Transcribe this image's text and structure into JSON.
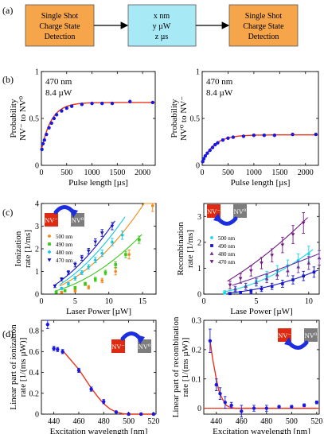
{
  "colors": {
    "orange": "#f6a54a",
    "cyan": "#a8e9f6",
    "red": "#e8341c",
    "blue": "#1818e0",
    "grey": "#8a8a8a",
    "nvred": "#dd2a10",
    "nvgrey": "#7d7d7d"
  },
  "panel_labels": {
    "a": "(a)",
    "b": "(b)",
    "c": "(c)",
    "d": "(d)"
  },
  "flow": {
    "box1": [
      "Single Shot",
      "Charge State",
      "Detection"
    ],
    "box2": [
      "x nm",
      "y µW",
      "z µs"
    ],
    "box3": [
      "Single Shot",
      "Charge State",
      "Detection"
    ]
  },
  "nv": {
    "minus": "NV⁻",
    "zero": "NV⁰"
  },
  "legend": [
    "500 nm",
    "490 nm",
    "480 nm",
    "470 nm"
  ],
  "chart_data": [
    {
      "id": "b-left",
      "type": "scatter",
      "annotation": [
        "470 nm",
        "8.4 µW"
      ],
      "xlabel": "Pulse length [µs]",
      "ylabel": [
        "Probability",
        "NV⁻ to NV⁰"
      ],
      "xlim": [
        0,
        2250
      ],
      "ylim": [
        0,
        1
      ],
      "xticks": [
        "0",
        "500",
        "1000",
        "1500",
        "2000"
      ],
      "yticks": [
        "0",
        "0.5",
        "1"
      ],
      "x": [
        10,
        30,
        60,
        100,
        150,
        200,
        250,
        300,
        400,
        500,
        600,
        800,
        1000,
        1200,
        1400,
        1750,
        2200
      ],
      "y": [
        0.17,
        0.23,
        0.27,
        0.33,
        0.4,
        0.45,
        0.5,
        0.54,
        0.58,
        0.61,
        0.63,
        0.65,
        0.66,
        0.66,
        0.66,
        0.68,
        0.67
      ],
      "fit": {
        "a": 0.67,
        "b": 0.16,
        "tau": 200
      }
    },
    {
      "id": "b-right",
      "type": "scatter",
      "annotation": [
        "470 nm",
        "8.4 µW"
      ],
      "xlabel": "Pulse length [µs]",
      "ylabel": [
        "Probability",
        "NV⁰ to NV⁻"
      ],
      "xlim": [
        0,
        2250
      ],
      "ylim": [
        0,
        1
      ],
      "xticks": [
        "0",
        "500",
        "1000",
        "1500",
        "2000"
      ],
      "yticks": [
        "0",
        "0.5",
        "1"
      ],
      "x": [
        10,
        30,
        60,
        100,
        150,
        200,
        250,
        300,
        400,
        500,
        600,
        800,
        1000,
        1200,
        1400,
        1750,
        2200
      ],
      "y": [
        0.04,
        0.07,
        0.1,
        0.13,
        0.16,
        0.19,
        0.22,
        0.24,
        0.27,
        0.29,
        0.3,
        0.31,
        0.32,
        0.32,
        0.32,
        0.33,
        0.33
      ],
      "fit": {
        "a": 0.325,
        "b": 0.03,
        "tau": 230
      }
    },
    {
      "id": "c-left",
      "type": "scatter",
      "xlabel": "Laser Power [µW]",
      "ylabel": [
        "Ionization",
        "rate [1/ms]"
      ],
      "xlim": [
        0,
        17
      ],
      "ylim": [
        0,
        4
      ],
      "xticks": [
        "0",
        "5",
        "10",
        "15"
      ],
      "yticks": [
        "0",
        "1",
        "2",
        "3",
        "4"
      ],
      "series": [
        {
          "name": "500 nm",
          "color": "#f08a18",
          "marker": "circle",
          "x": [
            3,
            5,
            7,
            9,
            11,
            13,
            16.5
          ],
          "y": [
            0.08,
            0.15,
            0.3,
            0.6,
            1.0,
            1.75,
            3.9
          ],
          "err": [
            0.05,
            0.06,
            0.08,
            0.1,
            0.15,
            0.2,
            0.25
          ],
          "fit": [
            0.08,
            0.07,
            0.0123
          ]
        },
        {
          "name": "490 nm",
          "color": "#3cc818",
          "marker": "square",
          "x": [
            2.2,
            3.5,
            5,
            6.5,
            8,
            9.5,
            11,
            12.5,
            14.5
          ],
          "y": [
            0.08,
            0.15,
            0.28,
            0.45,
            0.65,
            0.95,
            1.3,
            1.75,
            2.4
          ],
          "err": [
            0.04,
            0.05,
            0.06,
            0.07,
            0.09,
            0.1,
            0.12,
            0.14,
            0.16
          ],
          "fit": [
            0.0,
            0.05,
            0.0085
          ]
        },
        {
          "name": "480 nm",
          "color": "#15c8e0",
          "marker": "diamond",
          "x": [
            3,
            4,
            5,
            6,
            7,
            8,
            9,
            10.5,
            12
          ],
          "y": [
            0.25,
            0.45,
            0.7,
            0.95,
            1.2,
            1.5,
            1.8,
            2.3,
            2.6
          ],
          "err": [
            0.05,
            0.06,
            0.08,
            0.09,
            0.1,
            0.12,
            0.14,
            0.16,
            0.18
          ],
          "fit": [
            0.0,
            0.12,
            0.0125
          ]
        },
        {
          "name": "470 nm",
          "color": "#1515c8",
          "marker": "triangle-down",
          "x": [
            2,
            3,
            4,
            5,
            6,
            7,
            8,
            9,
            10.5
          ],
          "y": [
            0.35,
            0.65,
            0.95,
            1.3,
            1.6,
            1.9,
            2.3,
            2.7,
            3.0
          ],
          "err": [
            0.06,
            0.07,
            0.08,
            0.1,
            0.11,
            0.12,
            0.14,
            0.15,
            0.16
          ],
          "fit": [
            0.05,
            0.15,
            0.013
          ]
        }
      ]
    },
    {
      "id": "c-right",
      "type": "scatter",
      "xlabel": "Lase Power [µW]",
      "ylabel": [
        "Recombination",
        "rate [1/ms]"
      ],
      "xlim": [
        0,
        11
      ],
      "ylim": [
        0,
        3.5
      ],
      "xticks": [
        "0",
        "5",
        "10"
      ],
      "yticks": [
        "0",
        "1",
        "2",
        "3"
      ],
      "series": [
        {
          "name": "500 nm",
          "color": "#15d8ea",
          "marker": "circle",
          "x": [
            2,
            3,
            4,
            5,
            6,
            7,
            8,
            9,
            10
          ],
          "y": [
            0.05,
            0.15,
            0.3,
            0.5,
            0.7,
            0.9,
            1.1,
            1.3,
            1.55
          ],
          "err": [
            0.08,
            0.1,
            0.12,
            0.15,
            0.18,
            0.2,
            0.22,
            0.25,
            0.3
          ],
          "fit": [
            0.0,
            0.02,
            0.014
          ]
        },
        {
          "name": "490 nm",
          "color": "#1515c8",
          "marker": "square",
          "x": [
            2.5,
            3.5,
            4.5,
            5.5,
            6.5,
            7.5,
            8.5,
            9.5,
            10.5
          ],
          "y": [
            0.02,
            0.05,
            0.1,
            0.2,
            0.3,
            0.4,
            0.55,
            0.7,
            0.85
          ],
          "err": [
            0.05,
            0.06,
            0.08,
            0.1,
            0.12,
            0.14,
            0.16,
            0.18,
            0.2
          ],
          "fit": [
            0.0,
            0.0,
            0.0078
          ]
        },
        {
          "name": "480 nm",
          "color": "#7030a0",
          "marker": "triangle-up",
          "x": [
            3,
            4,
            5,
            6,
            7,
            8,
            9,
            10,
            11
          ],
          "y": [
            0.2,
            0.3,
            0.45,
            0.6,
            0.75,
            0.9,
            1.05,
            1.2,
            1.4
          ],
          "err": [
            0.1,
            0.12,
            0.14,
            0.16,
            0.18,
            0.2,
            0.22,
            0.25,
            0.28
          ],
          "fit": [
            0.0,
            0.12,
            0.002
          ]
        },
        {
          "name": "470 nm",
          "color": "#701a80",
          "marker": "triangle-down",
          "x": [
            2.5,
            3.5,
            4.5,
            5.5,
            6.5,
            7.5,
            8.5,
            9.5
          ],
          "y": [
            0.35,
            0.6,
            0.9,
            1.2,
            1.5,
            1.9,
            2.3,
            2.75
          ],
          "err": [
            0.15,
            0.18,
            0.2,
            0.22,
            0.25,
            0.3,
            0.35,
            0.4
          ],
          "fit": [
            0.0,
            0.2,
            0.01
          ]
        }
      ]
    },
    {
      "id": "d-left",
      "type": "scatter",
      "xlabel": "Excitation wavelength [nm]",
      "ylabel": [
        "Linear part of ionization",
        "rate [1/(ms µW)]"
      ],
      "xlim": [
        430,
        522
      ],
      "ylim": [
        0,
        0.9
      ],
      "xticks": [
        "440",
        "460",
        "480",
        "500",
        "520"
      ],
      "yticks": [
        "0",
        "0.2",
        "0.4",
        "0.6",
        "0.8"
      ],
      "x": [
        435,
        440,
        443,
        447,
        460,
        470,
        480,
        490,
        500,
        510,
        520
      ],
      "y": [
        0.86,
        0.63,
        0.62,
        0.6,
        0.42,
        0.24,
        0.12,
        0.02,
        0.0,
        0.0,
        0.0
      ],
      "err": [
        0.04,
        0.02,
        0.02,
        0.02,
        0.02,
        0.02,
        0.02,
        0.01,
        0.01,
        0.01,
        0.01
      ],
      "fit": {
        "x": [
          447,
          450,
          455,
          460,
          465,
          470,
          475,
          480,
          485,
          490,
          495,
          500,
          505,
          510,
          515,
          520
        ],
        "y": [
          0.61,
          0.57,
          0.5,
          0.43,
          0.34,
          0.25,
          0.17,
          0.1,
          0.05,
          0.02,
          0.005,
          0,
          0,
          0,
          0,
          0
        ]
      }
    },
    {
      "id": "d-right",
      "type": "scatter",
      "xlabel": "Excitation wavelength [nm]",
      "ylabel": [
        "Linear part of recombination",
        "rate [1/(ms µW)]"
      ],
      "xlim": [
        430,
        522
      ],
      "ylim": [
        -0.02,
        0.3
      ],
      "xticks": [
        "440",
        "460",
        "480",
        "500",
        "520"
      ],
      "yticks": [
        "0",
        "0.1",
        "0.2",
        "0.3"
      ],
      "x": [
        435,
        440,
        443,
        447,
        452,
        460,
        470,
        480,
        490,
        500,
        510,
        520
      ],
      "y": [
        0.23,
        0.08,
        0.05,
        0.02,
        0.01,
        -0.01,
        0.0,
        0.0,
        0.005,
        0.005,
        0.01,
        0.02
      ],
      "err": [
        0.04,
        0.02,
        0.02,
        0.02,
        0.01,
        0.02,
        0.01,
        0.01,
        0.005,
        0.005,
        0.005,
        0.005
      ],
      "fit": {
        "x": [
          435,
          437,
          440,
          442,
          445,
          448,
          450,
          455,
          460,
          470,
          480,
          490,
          500,
          510,
          520
        ],
        "y": [
          0.23,
          0.17,
          0.1,
          0.06,
          0.03,
          0.01,
          0.005,
          0,
          0,
          0,
          0,
          0,
          0,
          0,
          0
        ]
      }
    }
  ]
}
